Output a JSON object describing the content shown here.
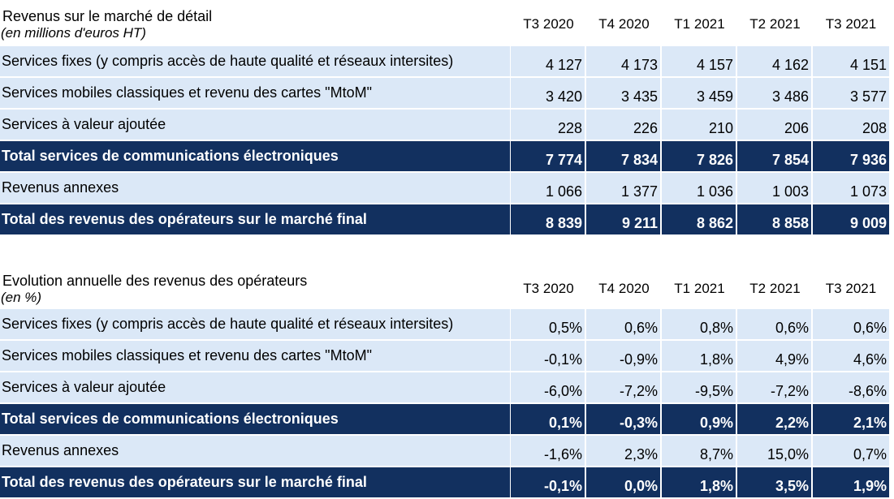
{
  "colors": {
    "light_row": "#dbe8f7",
    "dark_row": "#12305f",
    "dark_text": "#ffffff"
  },
  "chart_data": [
    {
      "type": "table",
      "title": "Revenus sur le marché de détail",
      "subtitle": "(en millions d'euros HT)",
      "columns": [
        "T3 2020",
        "T4 2020",
        "T1 2021",
        "T2 2021",
        "T3 2021"
      ],
      "rows": [
        {
          "label": "Services fixes (y compris accès de haute qualité et réseaux intersites)",
          "style": "light",
          "values": [
            "4 127",
            "4 173",
            "4 157",
            "4 162",
            "4 151"
          ]
        },
        {
          "label": "Services mobiles classiques et revenu des cartes \"MtoM\"",
          "style": "light",
          "values": [
            "3 420",
            "3 435",
            "3 459",
            "3 486",
            "3 577"
          ]
        },
        {
          "label": "Services à valeur ajoutée",
          "style": "light",
          "values": [
            "228",
            "226",
            "210",
            "206",
            "208"
          ]
        },
        {
          "label": "Total services de communications électroniques",
          "style": "dark",
          "values": [
            "7 774",
            "7 834",
            "7 826",
            "7 854",
            "7 936"
          ]
        },
        {
          "label": "Revenus annexes",
          "style": "light",
          "values": [
            "1 066",
            "1 377",
            "1 036",
            "1 003",
            "1 073"
          ]
        },
        {
          "label": "Total des revenus des opérateurs sur le marché final",
          "style": "dark",
          "values": [
            "8 839",
            "9 211",
            "8 862",
            "8 858",
            "9 009"
          ]
        }
      ]
    },
    {
      "type": "table",
      "title": "Evolution annuelle des revenus des opérateurs",
      "subtitle": "(en %)",
      "columns": [
        "T3 2020",
        "T4 2020",
        "T1 2021",
        "T2 2021",
        "T3 2021"
      ],
      "rows": [
        {
          "label": "Services fixes (y compris accès de haute qualité et réseaux intersites)",
          "style": "light",
          "values": [
            "0,5%",
            "0,6%",
            "0,8%",
            "0,6%",
            "0,6%"
          ]
        },
        {
          "label": "Services mobiles classiques et revenu des cartes \"MtoM\"",
          "style": "light",
          "values": [
            "-0,1%",
            "-0,9%",
            "1,8%",
            "4,9%",
            "4,6%"
          ]
        },
        {
          "label": "Services à valeur ajoutée",
          "style": "light",
          "values": [
            "-6,0%",
            "-7,2%",
            "-9,5%",
            "-7,2%",
            "-8,6%"
          ]
        },
        {
          "label": "Total services de communications électroniques",
          "style": "dark",
          "values": [
            "0,1%",
            "-0,3%",
            "0,9%",
            "2,2%",
            "2,1%"
          ]
        },
        {
          "label": "Revenus annexes",
          "style": "light",
          "values": [
            "-1,6%",
            "2,3%",
            "8,7%",
            "15,0%",
            "0,7%"
          ]
        },
        {
          "label": "Total des revenus des opérateurs sur le marché final",
          "style": "dark",
          "values": [
            "-0,1%",
            "0,0%",
            "1,8%",
            "3,5%",
            "1,9%"
          ]
        }
      ]
    }
  ]
}
